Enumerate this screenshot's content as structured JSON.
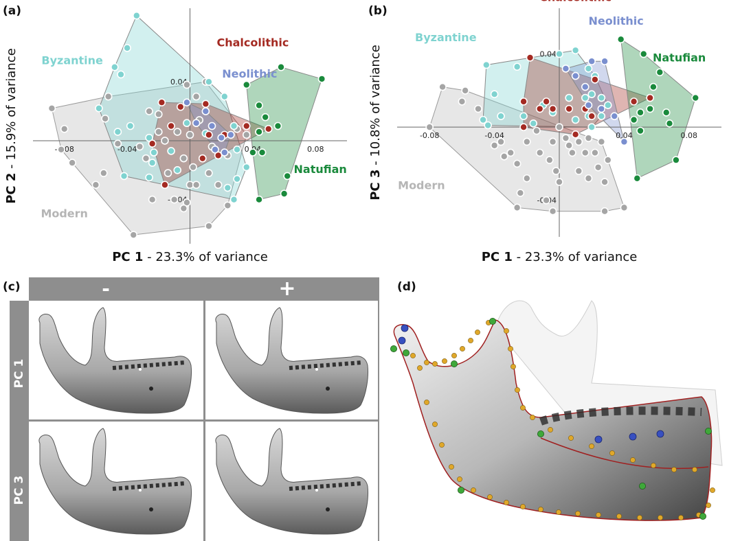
{
  "panels": {
    "a": "(a)",
    "b": "(b)",
    "c": "(c)",
    "d": "(d)"
  },
  "colors": {
    "Byzantine": "#7fd3d0",
    "Chalcolithic": "#a42a22",
    "Neolithic": "#7a8fcf",
    "Natufian": "#1a8a3c",
    "Modern": "#a9a9a9"
  },
  "chart_data": [
    {
      "type": "scatter",
      "panel": "(a)",
      "xlabel_bold": "PC 1",
      "xlabel_rest": " - 23.3% of variance",
      "ylabel_bold": "PC 2",
      "ylabel_rest": " - 15.9% of variance",
      "x_ticks": [
        "-0.08",
        "-0.04",
        "0.04",
        "0.08"
      ],
      "x_tick_values": [
        -0.08,
        -0.04,
        0.04,
        0.08
      ],
      "y_ticks": [
        "0.04",
        "-0.04"
      ],
      "y_tick_values": [
        0.04,
        -0.04
      ],
      "xlim": [
        -0.1,
        0.1
      ],
      "ylim": [
        -0.07,
        0.09
      ],
      "groups": [
        {
          "name": "Byzantine",
          "label_x": -0.075,
          "label_y": 0.052,
          "points": [
            [
              -0.034,
              0.085
            ],
            [
              -0.04,
              0.063
            ],
            [
              -0.048,
              0.05
            ],
            [
              -0.044,
              0.045
            ],
            [
              -0.058,
              0.022
            ],
            [
              -0.046,
              0.006
            ],
            [
              -0.026,
              0.002
            ],
            [
              -0.023,
              -0.008
            ],
            [
              -0.038,
              0.01
            ],
            [
              -0.024,
              -0.015
            ],
            [
              -0.012,
              -0.007
            ],
            [
              -0.026,
              -0.025
            ],
            [
              -0.042,
              -0.024
            ],
            [
              -0.008,
              -0.02
            ],
            [
              0.012,
              0.04
            ],
            [
              0.022,
              0.03
            ],
            [
              0.028,
              0.01
            ],
            [
              0.03,
              -0.006
            ],
            [
              0.036,
              -0.018
            ],
            [
              0.03,
              -0.026
            ],
            [
              0.024,
              -0.032
            ],
            [
              0.028,
              -0.04
            ],
            [
              0.01,
              0.005
            ],
            [
              -0.002,
              0.012
            ]
          ]
        },
        {
          "name": "Chalcolithic",
          "label_x": 0.04,
          "label_y": 0.064,
          "points": [
            [
              -0.018,
              0.026
            ],
            [
              -0.006,
              0.023
            ],
            [
              0.01,
              0.025
            ],
            [
              -0.024,
              -0.002
            ],
            [
              -0.012,
              0.01
            ],
            [
              0.012,
              0.004
            ],
            [
              0.022,
              0.004
            ],
            [
              0.008,
              -0.012
            ],
            [
              0.018,
              -0.01
            ],
            [
              -0.016,
              -0.03
            ],
            [
              0.036,
              0.01
            ],
            [
              0.044,
              0.006
            ],
            [
              0.05,
              0.008
            ]
          ]
        },
        {
          "name": "Neolithic",
          "label_x": 0.038,
          "label_y": 0.043,
          "points": [
            [
              -0.002,
              0.026
            ],
            [
              0.004,
              0.012
            ],
            [
              0.014,
              0.01
            ],
            [
              0.02,
              0.002
            ],
            [
              0.016,
              -0.006
            ],
            [
              0.01,
              0.02
            ],
            [
              0.026,
              0.004
            ],
            [
              0.022,
              -0.008
            ]
          ]
        },
        {
          "name": "Natufian",
          "label_x": 0.083,
          "label_y": -0.022,
          "points": [
            [
              0.036,
              0.038
            ],
            [
              0.058,
              0.05
            ],
            [
              0.084,
              0.042
            ],
            [
              0.044,
              0.024
            ],
            [
              0.048,
              0.016
            ],
            [
              0.044,
              0.006
            ],
            [
              0.056,
              0.01
            ],
            [
              0.04,
              -0.008
            ],
            [
              0.046,
              -0.008
            ],
            [
              0.062,
              -0.024
            ],
            [
              0.06,
              -0.036
            ],
            [
              0.044,
              -0.04
            ]
          ]
        },
        {
          "name": "Modern",
          "label_x": -0.08,
          "label_y": -0.052,
          "points": [
            [
              -0.088,
              0.022
            ],
            [
              -0.08,
              0.008
            ],
            [
              -0.082,
              -0.006
            ],
            [
              -0.075,
              -0.015
            ],
            [
              -0.06,
              -0.03
            ],
            [
              -0.055,
              -0.022
            ],
            [
              -0.054,
              0.015
            ],
            [
              -0.052,
              0.03
            ],
            [
              -0.046,
              -0.002
            ],
            [
              -0.026,
              0.02
            ],
            [
              -0.02,
              0.018
            ],
            [
              -0.032,
              -0.004
            ],
            [
              -0.028,
              -0.012
            ],
            [
              -0.02,
              0.006
            ],
            [
              -0.016,
              0.0
            ],
            [
              -0.002,
              0.038
            ],
            [
              0.01,
              0.04
            ],
            [
              0.004,
              0.03
            ],
            [
              0.006,
              0.014
            ],
            [
              0.0,
              0.004
            ],
            [
              -0.008,
              0.006
            ],
            [
              -0.004,
              -0.012
            ],
            [
              0.002,
              -0.018
            ],
            [
              0.0,
              -0.03
            ],
            [
              0.004,
              -0.03
            ],
            [
              -0.01,
              -0.04
            ],
            [
              -0.002,
              -0.042
            ],
            [
              -0.004,
              -0.046
            ],
            [
              -0.036,
              -0.064
            ],
            [
              0.012,
              -0.058
            ],
            [
              0.024,
              -0.044
            ],
            [
              0.018,
              -0.03
            ],
            [
              0.012,
              -0.022
            ],
            [
              0.008,
              -0.012
            ],
            [
              0.014,
              -0.004
            ],
            [
              0.024,
              -0.01
            ],
            [
              0.03,
              0.008
            ],
            [
              0.036,
              0.004
            ],
            [
              -0.014,
              -0.022
            ],
            [
              -0.024,
              -0.04
            ]
          ]
        }
      ]
    },
    {
      "type": "scatter",
      "panel": "(b)",
      "xlabel_bold": "PC 1",
      "xlabel_rest": " - 23.3% of variance",
      "ylabel_bold": "PC 3",
      "ylabel_rest": " - 10.8% of variance",
      "x_ticks": [
        "-0.08",
        "-0.04",
        "0.04",
        "0.08"
      ],
      "x_tick_values": [
        -0.08,
        -0.04,
        0.04,
        0.08
      ],
      "y_ticks": [
        "0.04",
        "-0.04"
      ],
      "y_tick_values": [
        0.04,
        -0.04
      ],
      "xlim": [
        -0.1,
        0.1
      ],
      "ylim": [
        -0.06,
        0.065
      ],
      "groups": [
        {
          "name": "Byzantine",
          "label_x": -0.07,
          "label_y": 0.047,
          "points": [
            [
              -0.045,
              0.034
            ],
            [
              -0.026,
              0.033
            ],
            [
              -0.04,
              0.018
            ],
            [
              -0.047,
              0.004
            ],
            [
              -0.044,
              0.001
            ],
            [
              -0.036,
              0.006
            ],
            [
              -0.022,
              0.006
            ],
            [
              -0.016,
              0.002
            ],
            [
              0.0,
              0.04
            ],
            [
              0.016,
              0.016
            ],
            [
              0.02,
              0.018
            ],
            [
              0.026,
              0.016
            ],
            [
              0.03,
              0.012
            ],
            [
              0.022,
              0.028
            ],
            [
              0.018,
              0.032
            ],
            [
              -0.01,
              0.012
            ],
            [
              -0.004,
              0.008
            ],
            [
              0.006,
              0.016
            ],
            [
              0.01,
              0.004
            ],
            [
              0.018,
              0.006
            ],
            [
              0.026,
              0.006
            ],
            [
              0.02,
              0.0
            ],
            [
              0.01,
              0.042
            ]
          ]
        },
        {
          "name": "Chalcolithic",
          "label_x": 0.01,
          "label_y": 0.069,
          "points": [
            [
              -0.018,
              0.038
            ],
            [
              -0.022,
              0.014
            ],
            [
              -0.008,
              0.014
            ],
            [
              -0.004,
              0.01
            ],
            [
              -0.012,
              0.01
            ],
            [
              -0.022,
              0.0
            ],
            [
              0.006,
              0.01
            ],
            [
              0.016,
              0.01
            ],
            [
              0.02,
              0.006
            ],
            [
              0.01,
              -0.004
            ],
            [
              0.022,
              0.026
            ],
            [
              0.056,
              0.016
            ],
            [
              0.046,
              0.014
            ]
          ]
        },
        {
          "name": "Neolithic",
          "label_x": 0.035,
          "label_y": 0.056,
          "points": [
            [
              0.004,
              0.032
            ],
            [
              0.01,
              0.028
            ],
            [
              0.016,
              0.022
            ],
            [
              0.018,
              0.012
            ],
            [
              0.026,
              0.01
            ],
            [
              0.034,
              0.006
            ],
            [
              0.04,
              -0.008
            ],
            [
              0.028,
              0.036
            ],
            [
              0.02,
              0.036
            ]
          ]
        },
        {
          "name": "Natufian",
          "label_x": 0.074,
          "label_y": 0.036,
          "points": [
            [
              0.038,
              0.048
            ],
            [
              0.052,
              0.04
            ],
            [
              0.062,
              0.03
            ],
            [
              0.058,
              0.022
            ],
            [
              0.056,
              0.01
            ],
            [
              0.05,
              0.008
            ],
            [
              0.084,
              0.016
            ],
            [
              0.046,
              0.004
            ],
            [
              0.05,
              -0.002
            ],
            [
              0.066,
              0.008
            ],
            [
              0.068,
              0.002
            ],
            [
              0.072,
              -0.018
            ],
            [
              0.048,
              -0.028
            ]
          ]
        },
        {
          "name": "Modern",
          "label_x": -0.085,
          "label_y": -0.034,
          "points": [
            [
              -0.072,
              0.022
            ],
            [
              -0.058,
              0.02
            ],
            [
              -0.06,
              0.014
            ],
            [
              -0.08,
              0.0
            ],
            [
              -0.05,
              0.01
            ],
            [
              -0.036,
              -0.008
            ],
            [
              -0.03,
              -0.014
            ],
            [
              -0.026,
              -0.02
            ],
            [
              -0.02,
              -0.008
            ],
            [
              -0.014,
              -0.002
            ],
            [
              -0.012,
              -0.014
            ],
            [
              -0.004,
              -0.008
            ],
            [
              0.0,
              0.0
            ],
            [
              0.004,
              -0.006
            ],
            [
              0.006,
              -0.01
            ],
            [
              0.008,
              -0.014
            ],
            [
              0.012,
              -0.008
            ],
            [
              0.016,
              -0.014
            ],
            [
              0.018,
              -0.006
            ],
            [
              0.022,
              -0.014
            ],
            [
              0.026,
              -0.008
            ],
            [
              -0.006,
              -0.018
            ],
            [
              -0.002,
              -0.024
            ],
            [
              0.012,
              -0.024
            ],
            [
              0.018,
              -0.028
            ],
            [
              -0.02,
              -0.028
            ],
            [
              -0.024,
              -0.036
            ],
            [
              -0.026,
              -0.044
            ],
            [
              -0.008,
              -0.04
            ],
            [
              -0.004,
              -0.046
            ],
            [
              0.0,
              -0.03
            ],
            [
              0.024,
              -0.022
            ],
            [
              0.03,
              -0.018
            ],
            [
              0.028,
              -0.03
            ],
            [
              0.04,
              -0.044
            ],
            [
              0.028,
              -0.046
            ],
            [
              -0.034,
              -0.016
            ],
            [
              -0.04,
              -0.01
            ]
          ]
        }
      ]
    }
  ],
  "grid_c": {
    "col_minus": "-",
    "col_plus": "+",
    "row_pc1": "PC 1",
    "row_pc3": "PC 3"
  }
}
